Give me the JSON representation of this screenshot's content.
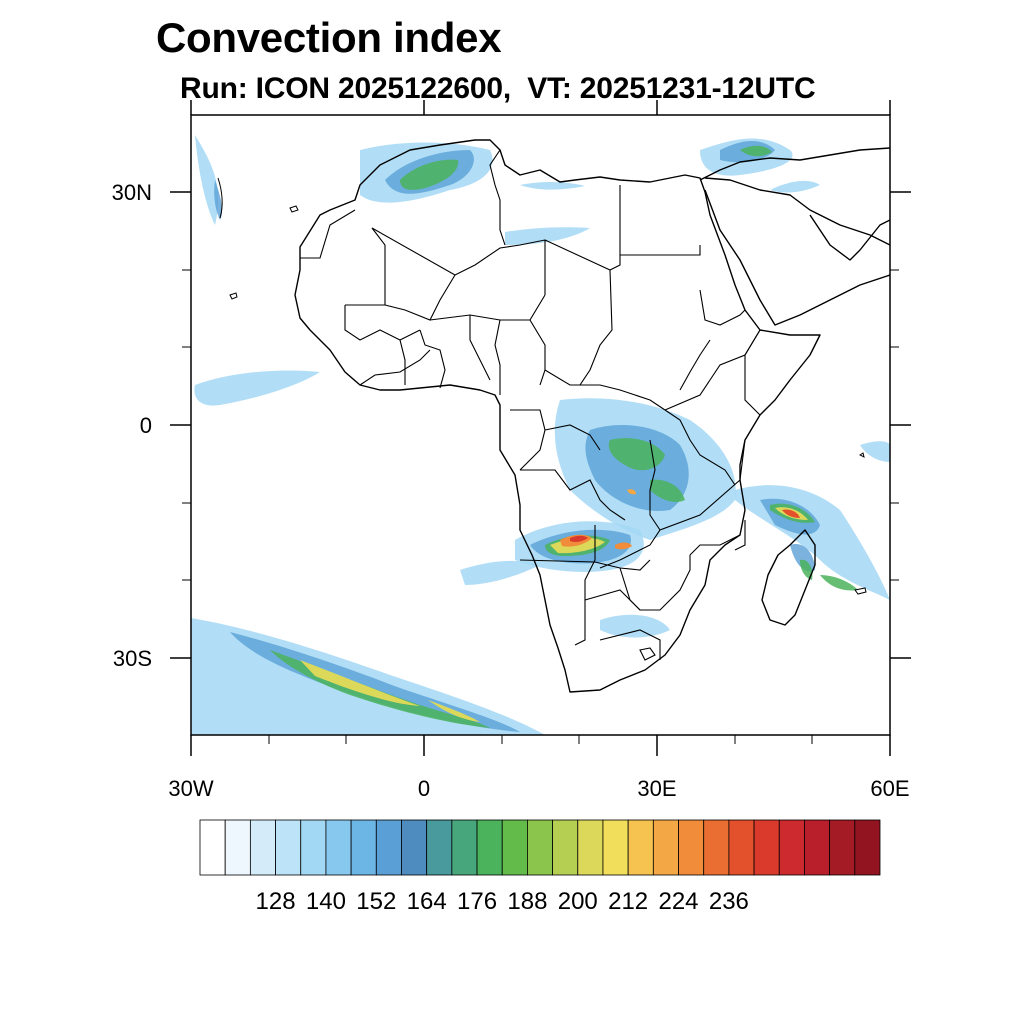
{
  "header": {
    "title": "Convection index",
    "subtitle": "Run: ICON 2025122600,  VT: 20251231-12UTC"
  },
  "map": {
    "region": "Africa",
    "projection": "lat-lon",
    "lon_range": [
      -30,
      60
    ],
    "lat_range": [
      -40,
      40
    ],
    "x_ticks": [
      {
        "value": -30,
        "label": "30W"
      },
      {
        "value": 0,
        "label": "0"
      },
      {
        "value": 30,
        "label": "30E"
      },
      {
        "value": 60,
        "label": "60E"
      }
    ],
    "y_ticks": [
      {
        "value": 30,
        "label": "30N"
      },
      {
        "value": 0,
        "label": "0"
      },
      {
        "value": -30,
        "label": "30S"
      }
    ],
    "features": [
      "coastlines",
      "country-borders",
      "convection-index-shading"
    ]
  },
  "colorbar": {
    "labels": [
      "128",
      "140",
      "152",
      "164",
      "176",
      "188",
      "200",
      "212",
      "224",
      "236"
    ],
    "colors": [
      "#ffffff",
      "#eef7fd",
      "#d4ecfa",
      "#bde3f8",
      "#a3d8f4",
      "#86c8ee",
      "#6cb6e6",
      "#5aa0d6",
      "#4e8cc0",
      "#489a9c",
      "#47a67c",
      "#4ab35c",
      "#63bb4a",
      "#8cc54c",
      "#b4cf52",
      "#dcd95a",
      "#f1df5c",
      "#f6c350",
      "#f4a745",
      "#f08c3a",
      "#ea6e31",
      "#e2512c",
      "#d93a2c",
      "#cc2a2e",
      "#b81f2a",
      "#a51b25",
      "#911420"
    ]
  }
}
